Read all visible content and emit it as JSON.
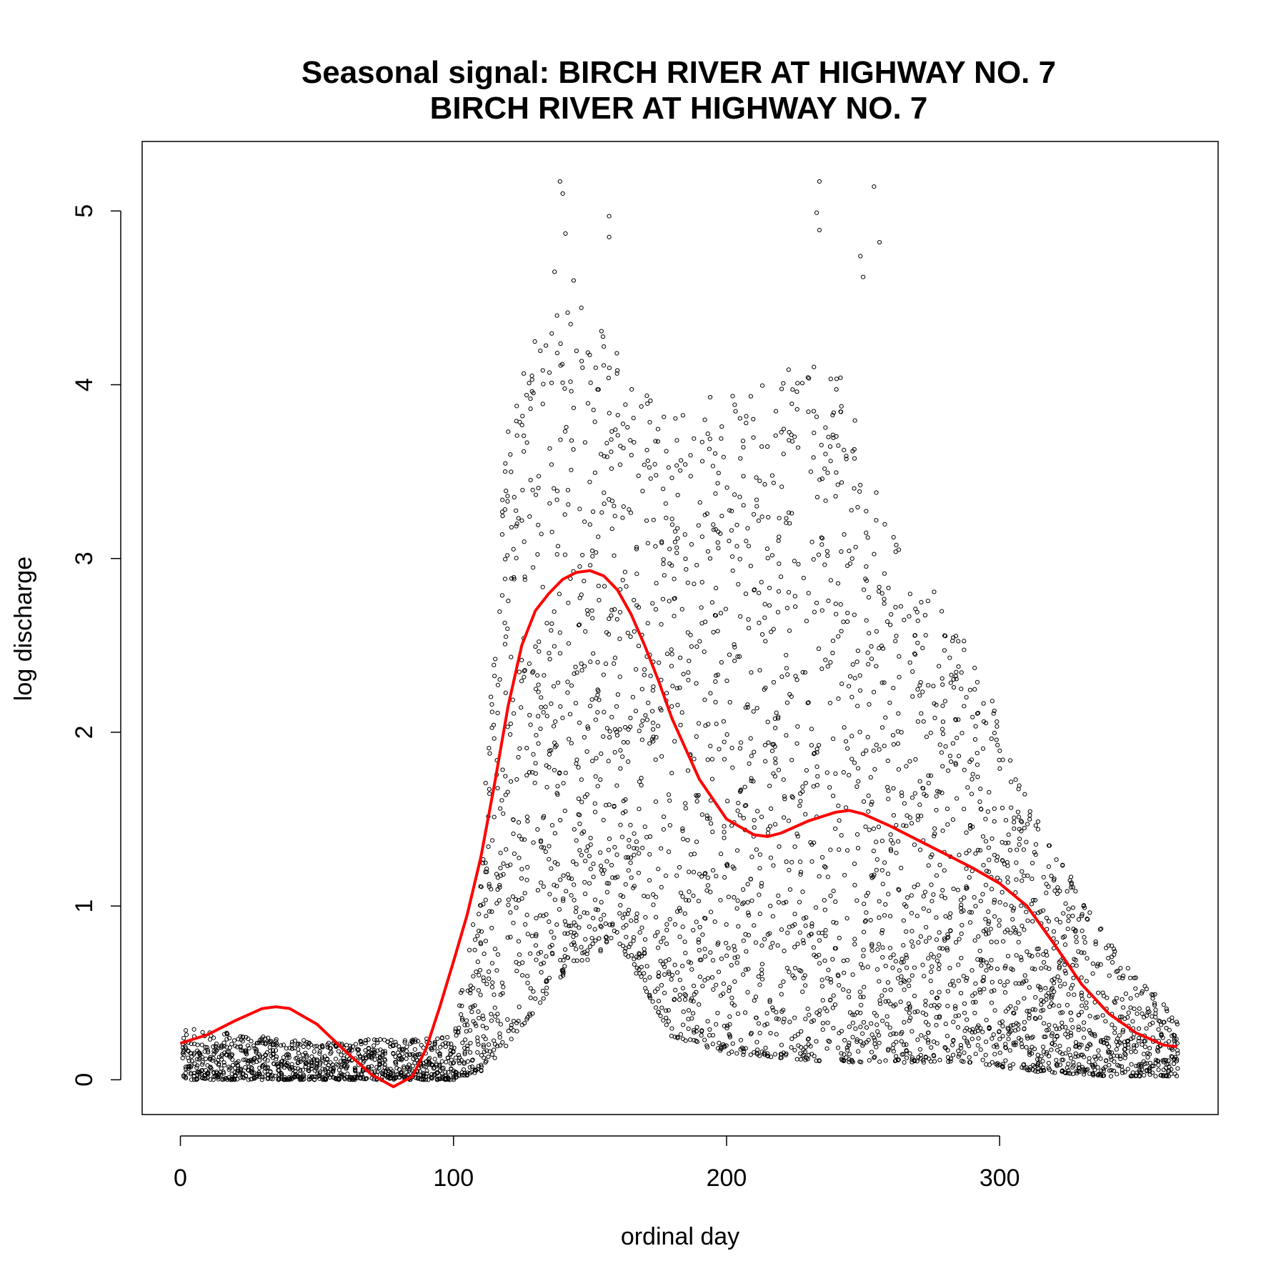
{
  "chart_data": {
    "type": "scatter",
    "title": "Seasonal signal: BIRCH RIVER AT HIGHWAY NO. 7",
    "subtitle": "BIRCH RIVER AT HIGHWAY NO. 7",
    "xlabel": "ordinal day",
    "ylabel": "log discharge",
    "xlim": [
      -14,
      380
    ],
    "ylim": [
      -0.2,
      5.4
    ],
    "xticks": [
      0,
      100,
      200,
      300
    ],
    "yticks": [
      0,
      1,
      2,
      3,
      4,
      5
    ],
    "xtick_labels": [
      "0",
      "100",
      "200",
      "300"
    ],
    "ytick_labels": [
      "0",
      "1",
      "2",
      "3",
      "4",
      "5"
    ],
    "grid": false,
    "legend": "none",
    "colors": {
      "points": "#000000",
      "smooth": "#ff0000"
    },
    "series": [
      {
        "kind": "points",
        "description_marker": "open circle",
        "envelope": [
          {
            "x": 0,
            "low": 0.0,
            "high": 0.3
          },
          {
            "x": 50,
            "low": 0.0,
            "high": 0.22
          },
          {
            "x": 100,
            "low": 0.0,
            "high": 0.25
          },
          {
            "x": 110,
            "low": 0.05,
            "high": 1.2
          },
          {
            "x": 120,
            "low": 0.2,
            "high": 3.9
          },
          {
            "x": 140,
            "low": 0.6,
            "high": 4.6
          },
          {
            "x": 160,
            "low": 0.8,
            "high": 4.2
          },
          {
            "x": 180,
            "low": 0.25,
            "high": 3.8
          },
          {
            "x": 200,
            "low": 0.15,
            "high": 4.0
          },
          {
            "x": 240,
            "low": 0.1,
            "high": 4.2
          },
          {
            "x": 260,
            "low": 0.1,
            "high": 3.2
          },
          {
            "x": 290,
            "low": 0.1,
            "high": 2.5
          },
          {
            "x": 310,
            "low": 0.05,
            "high": 1.6
          },
          {
            "x": 340,
            "low": 0.02,
            "high": 0.8
          },
          {
            "x": 365,
            "low": 0.02,
            "high": 0.35
          }
        ],
        "outliers": [
          {
            "x": 139,
            "y": 5.17
          },
          {
            "x": 140,
            "y": 5.1
          },
          {
            "x": 141,
            "y": 4.87
          },
          {
            "x": 157,
            "y": 4.97
          },
          {
            "x": 157,
            "y": 4.85
          },
          {
            "x": 234,
            "y": 5.17
          },
          {
            "x": 254,
            "y": 5.14
          },
          {
            "x": 233,
            "y": 4.99
          },
          {
            "x": 234,
            "y": 4.89
          },
          {
            "x": 256,
            "y": 4.82
          },
          {
            "x": 249,
            "y": 4.74
          },
          {
            "x": 250,
            "y": 4.62
          },
          {
            "x": 137,
            "y": 4.65
          },
          {
            "x": 144,
            "y": 4.6
          }
        ]
      },
      {
        "kind": "smooth",
        "x": [
          0,
          10,
          20,
          30,
          35,
          40,
          50,
          60,
          70,
          78,
          85,
          90,
          95,
          100,
          105,
          110,
          115,
          120,
          125,
          130,
          135,
          140,
          145,
          150,
          155,
          160,
          165,
          170,
          175,
          180,
          190,
          200,
          210,
          215,
          220,
          230,
          240,
          245,
          250,
          260,
          270,
          280,
          290,
          300,
          310,
          320,
          330,
          340,
          350,
          360,
          365
        ],
        "y": [
          0.21,
          0.26,
          0.34,
          0.41,
          0.42,
          0.41,
          0.32,
          0.17,
          0.03,
          -0.04,
          0.02,
          0.18,
          0.42,
          0.68,
          0.95,
          1.28,
          1.7,
          2.15,
          2.5,
          2.7,
          2.8,
          2.88,
          2.92,
          2.93,
          2.9,
          2.82,
          2.68,
          2.5,
          2.3,
          2.08,
          1.73,
          1.5,
          1.41,
          1.4,
          1.42,
          1.49,
          1.54,
          1.55,
          1.53,
          1.46,
          1.38,
          1.3,
          1.22,
          1.13,
          1.0,
          0.78,
          0.55,
          0.38,
          0.27,
          0.2,
          0.19
        ]
      }
    ]
  }
}
